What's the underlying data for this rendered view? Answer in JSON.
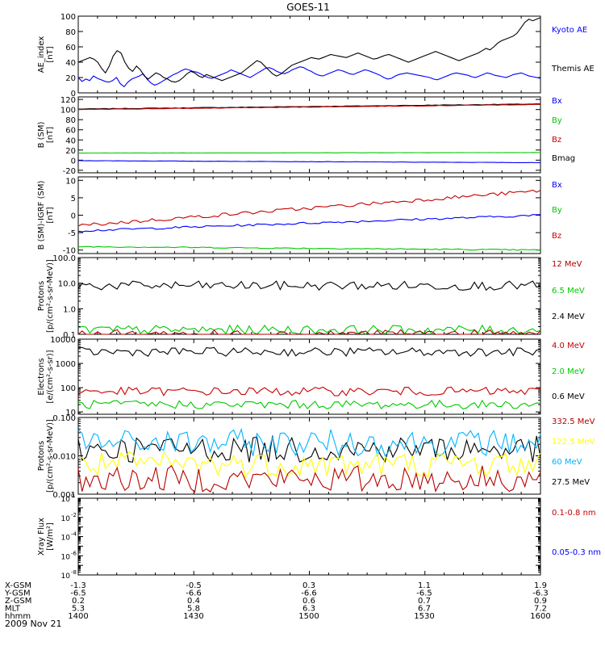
{
  "title": "GOES-11",
  "date": "2009 Nov 21",
  "colors": {
    "black": "#000000",
    "blue": "#0000ff",
    "green": "#00c800",
    "red": "#c80000",
    "darkred": "#b40000",
    "cyan": "#00b4ff",
    "yellow": "#ffff00"
  },
  "chart_data": [
    {
      "type": "line",
      "panel": "ae",
      "ylabel": [
        "AE_index",
        "[nT]"
      ],
      "ylim": [
        0,
        100
      ],
      "yticks": [
        0,
        20,
        40,
        60,
        80,
        100
      ],
      "x_range_hhmm": [
        "1400",
        "1600"
      ],
      "series": [
        {
          "name": "Kyoto AE",
          "color": "#0000ff",
          "values": [
            20,
            15,
            18,
            16,
            22,
            19,
            17,
            15,
            14,
            16,
            20,
            12,
            8,
            14,
            18,
            20,
            22,
            25,
            18,
            13,
            10,
            12,
            15,
            18,
            21,
            24,
            26,
            29,
            31,
            30,
            28,
            27,
            25,
            22,
            20,
            19,
            21,
            23,
            25,
            27,
            30,
            28,
            26,
            24,
            22,
            20,
            23,
            26,
            29,
            32,
            33,
            31,
            28,
            26,
            25,
            27,
            30,
            32,
            34,
            33,
            30,
            28,
            25,
            23,
            22,
            24,
            26,
            28,
            30,
            29,
            27,
            25,
            24,
            26,
            28,
            30,
            29,
            27,
            25,
            23,
            20,
            18,
            19,
            22,
            24,
            25,
            26,
            25,
            24,
            23,
            22,
            21,
            20,
            18,
            17,
            19,
            21,
            23,
            25,
            26,
            25,
            24,
            23,
            21,
            20,
            22,
            24,
            26,
            25,
            23,
            22,
            21,
            20,
            22,
            24,
            25,
            26,
            24,
            22,
            21,
            20,
            19
          ]
        },
        {
          "name": "Themis AE",
          "color": "#000000",
          "values": [
            40,
            42,
            44,
            46,
            44,
            40,
            32,
            26,
            35,
            48,
            55,
            52,
            40,
            32,
            28,
            35,
            30,
            22,
            18,
            22,
            26,
            24,
            20,
            18,
            15,
            14,
            16,
            20,
            25,
            28,
            26,
            22,
            20,
            24,
            22,
            20,
            18,
            16,
            18,
            20,
            22,
            24,
            26,
            30,
            34,
            38,
            42,
            40,
            35,
            30,
            25,
            22,
            24,
            28,
            32,
            36,
            38,
            40,
            42,
            44,
            46,
            45,
            44,
            46,
            48,
            50,
            49,
            48,
            47,
            46,
            48,
            50,
            52,
            50,
            48,
            46,
            44,
            45,
            47,
            49,
            50,
            48,
            46,
            44,
            42,
            40,
            42,
            44,
            46,
            48,
            50,
            52,
            54,
            52,
            50,
            48,
            46,
            44,
            42,
            44,
            46,
            48,
            50,
            52,
            55,
            58,
            56,
            60,
            65,
            68,
            70,
            72,
            74,
            78,
            85,
            92,
            96,
            94,
            96,
            98
          ]
        }
      ],
      "legend": [
        "Kyoto AE",
        "Themis AE"
      ]
    },
    {
      "type": "line",
      "panel": "bfield",
      "ylabel": [
        "B (SM)",
        "[nT]"
      ],
      "ylim": [
        -25,
        125
      ],
      "yticks": [
        -20,
        0,
        20,
        40,
        60,
        80,
        100,
        120
      ],
      "series": [
        {
          "name": "Bmag",
          "color": "#000000",
          "start": 101,
          "end": 111
        },
        {
          "name": "Bz",
          "color": "#c80000",
          "start": 100,
          "end": 110
        },
        {
          "name": "By",
          "color": "#00c800",
          "start": 14,
          "end": 15
        },
        {
          "name": "Bx",
          "color": "#0000ff",
          "start": -1,
          "end": -5
        }
      ],
      "legend": [
        "Bx",
        "By",
        "Bz",
        "Bmag"
      ]
    },
    {
      "type": "line",
      "panel": "bdiff",
      "ylabel": [
        "B (SM)-IGRF (SM)",
        "[nT]"
      ],
      "ylim": [
        -11,
        11
      ],
      "yticks": [
        -10,
        -5,
        0,
        5,
        10
      ],
      "series": [
        {
          "name": "Bx",
          "color": "#0000ff",
          "start": -4.5,
          "end": 0
        },
        {
          "name": "By",
          "color": "#00c800",
          "start": -9,
          "end": -10
        },
        {
          "name": "Bz",
          "color": "#c80000",
          "start": -3,
          "end": 7
        }
      ],
      "legend": [
        "Bx",
        "By",
        "Bz"
      ]
    },
    {
      "type": "line",
      "panel": "protons_low",
      "ylabel": [
        "Protons",
        "[p/(cm²-s-sr-MeV)]"
      ],
      "yscale": "log",
      "ylim": [
        0.1,
        100
      ],
      "ytick_labels": [
        "100.0",
        "10.0",
        "1.0",
        "0.1"
      ],
      "series": [
        {
          "name": "2.4 MeV",
          "color": "#000000",
          "level": 8
        },
        {
          "name": "6.5 MeV",
          "color": "#00c800",
          "level": 0.15
        },
        {
          "name": "12 MeV",
          "color": "#b40000",
          "level": 0.1
        }
      ],
      "legend": [
        "12 MeV",
        "6.5 MeV",
        "2.4 MeV"
      ]
    },
    {
      "type": "line",
      "panel": "electrons",
      "ylabel": [
        "Electrons",
        "[e/(cm²-s-sr)]"
      ],
      "yscale": "log",
      "ylim": [
        8,
        10000
      ],
      "ytick_labels": [
        "10000",
        "1000",
        "100",
        "10"
      ],
      "series": [
        {
          "name": "0.6 MeV",
          "color": "#000000",
          "level": 3000
        },
        {
          "name": "2.0 MeV",
          "color": "#00c800",
          "level": 20
        },
        {
          "name": "4.0 MeV",
          "color": "#c80000",
          "level": 70
        }
      ],
      "legend": [
        "4.0 MeV",
        "2.0 MeV",
        "0.6 MeV"
      ]
    },
    {
      "type": "line",
      "panel": "protons_high",
      "ylabel": [
        "Protons",
        "[p/(cm²-s-sr-MeV)]"
      ],
      "yscale": "log",
      "ylim": [
        0.001,
        0.1
      ],
      "ytick_labels": [
        "0.100",
        "0.010",
        "0.001"
      ],
      "series": [
        {
          "name": "27.5 MeV",
          "color": "#000000",
          "level": 0.015
        },
        {
          "name": "60 MeV",
          "color": "#00b4ff",
          "level": 0.022
        },
        {
          "name": "122.5 MeV",
          "color": "#ffff00",
          "level": 0.006
        },
        {
          "name": "332.5 MeV",
          "color": "#b40000",
          "level": 0.0025
        }
      ],
      "legend": [
        "332.5 MeV",
        "122.5 MeV",
        "60 MeV",
        "27.5 MeV"
      ]
    },
    {
      "type": "line",
      "panel": "xray",
      "ylabel": [
        "Xray Flux",
        "[W/m²]"
      ],
      "yscale": "log",
      "ylim": [
        1e-08,
        1
      ],
      "ytick_exponents": [
        "0",
        "-2",
        "-4",
        "-6",
        "-8"
      ],
      "series": [],
      "legend": [
        "0.1-0.8 nm",
        "0.05-0.3 nm"
      ]
    }
  ],
  "axis_table": {
    "rows": [
      {
        "label": "X-GSM",
        "values": [
          "-1.3",
          "-0.5",
          "0.3",
          "1.1",
          "1.9"
        ]
      },
      {
        "label": "Y-GSM",
        "values": [
          "-6.5",
          "-6.6",
          "-6.6",
          "-6.5",
          "-6.3"
        ]
      },
      {
        "label": "Z-GSM",
        "values": [
          "0.2",
          "0.4",
          "0.6",
          "0.7",
          "0.9"
        ]
      },
      {
        "label": "MLT",
        "values": [
          "5.3",
          "5.8",
          "6.3",
          "6.7",
          "7.2"
        ]
      },
      {
        "label": "hhmm",
        "values": [
          "1400",
          "1430",
          "1500",
          "1530",
          "1600"
        ]
      }
    ]
  }
}
